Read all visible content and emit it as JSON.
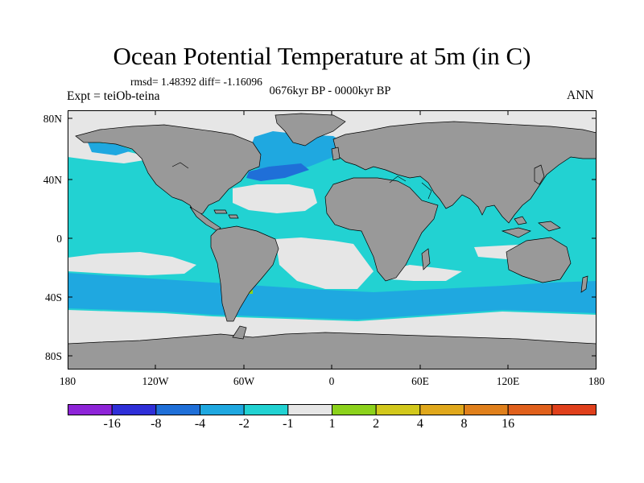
{
  "title": "Ocean Potential Temperature at 5m (in C)",
  "stats": "rmsd= 1.48392 diff= -1.16096",
  "subtitle": "0676kyr BP - 0000kyr BP",
  "experiment": "Expt = teiOb-teina",
  "season": "ANN",
  "lat_ticks": [
    "80N",
    "40N",
    "0",
    "40S",
    "80S"
  ],
  "lon_ticks": [
    "180",
    "120W",
    "60W",
    "0",
    "60E",
    "120E",
    "180"
  ],
  "colorbar": {
    "colors": [
      "#8e24d8",
      "#2f2fd8",
      "#1f6fd8",
      "#1fa8e0",
      "#22d2d2",
      "#e6e6e6",
      "#8cd21c",
      "#d2c81c",
      "#e0a81c",
      "#e0801c",
      "#e0601c",
      "#e0401c"
    ],
    "labels": [
      "-16",
      "-8",
      "-4",
      "-2",
      "-1",
      "1",
      "2",
      "4",
      "8",
      "16"
    ]
  },
  "map_colors": {
    "land": "#999999",
    "ocean_default": "#22d2d2",
    "near_zero": "#e6e6e6",
    "light_blue": "#1fa8e0",
    "blue": "#1f6fd8",
    "green": "#8cd21c",
    "coast": "#000000"
  }
}
